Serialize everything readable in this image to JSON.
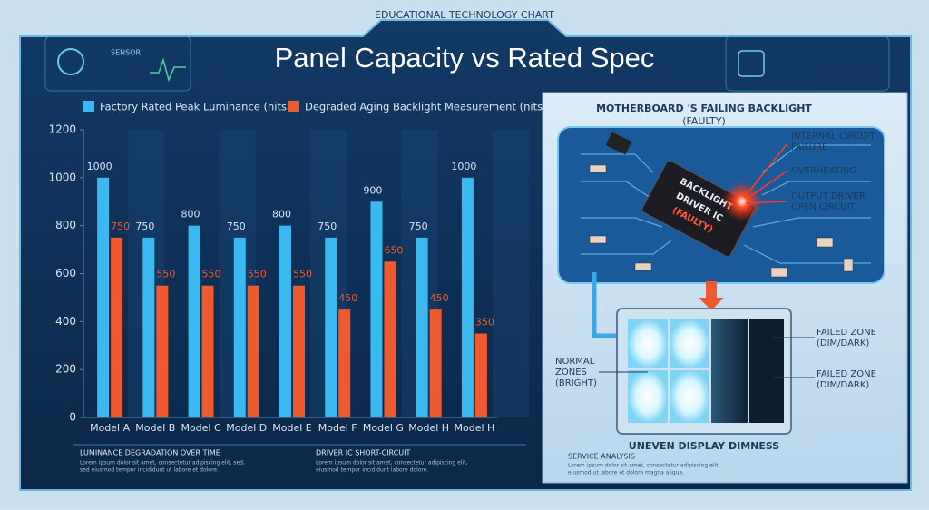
{
  "header": {
    "kicker": "EDUCATIONAL TECHNOLOGY CHART",
    "sensor": "SENSOR"
  },
  "chart_data": {
    "type": "bar",
    "title": "Panel Capacity vs Rated Spec",
    "categories": [
      "Model A",
      "Model B",
      "Model C",
      "Model D",
      "Model E",
      "Model F",
      "Model G",
      "Model H",
      "Model H"
    ],
    "series": [
      {
        "name": "Factory Rated Peak Luminance (nits)",
        "color": "#3ab8f0",
        "values": [
          1000,
          750,
          800,
          750,
          800,
          750,
          900,
          750,
          1000
        ]
      },
      {
        "name": "Degraded Aging Backlight Measurement (nits)",
        "color": "#ee5a2e",
        "values": [
          750,
          550,
          550,
          550,
          550,
          450,
          650,
          450,
          350
        ]
      }
    ],
    "ylim": [
      0,
      1200
    ],
    "yticks": [
      0,
      200,
      400,
      600,
      800,
      1000,
      1200
    ],
    "grid": false
  },
  "diagram": {
    "title": [
      "MOTHERBOARD 'S FAILING BACKLIGHT",
      "(FAULTY)"
    ],
    "chip": [
      "BACKLIGHT",
      "DRIVER IC",
      "(FAULTY)"
    ],
    "callouts": [
      [
        "INTERNAL CIRCUIT",
        "FAILURE"
      ],
      [
        "OVERHEATING"
      ],
      [
        "OUTPUT DRIVER",
        "OPEN CIRCUIT"
      ]
    ],
    "normal": [
      "NORMAL",
      "ZONES",
      "(BRIGHT)"
    ],
    "failed": [
      [
        "FAILED ZONE",
        "(DIM/DARK)"
      ],
      [
        "FAILED ZONE",
        "(DIM/DARK)"
      ]
    ],
    "caption": "UNEVEN DISPLAY DIMNESS"
  },
  "footer": [
    {
      "title": "LUMINANCE DEGRADATION OVER TIME",
      "text": [
        "Lorem ipsum dolor sit amet, consectetur adipiscing elit, sed,",
        "sed eiusmod tempor incididunt ut labore et dolore."
      ]
    },
    {
      "title": "DRIVER IC SHORT-CIRCUIT",
      "text": [
        "Lorem ipsum dolor sit amet, consectetur adipiscing elit,",
        "eiusmod tempor incididunt labore dolore."
      ]
    },
    {
      "title": "SERVICE ANALYSIS",
      "text": [
        "Lorem ipsum dolor sit amet, consectetur adipiscing elit,",
        "eiusmod ut labore et dolore magna aliqua."
      ]
    }
  ]
}
